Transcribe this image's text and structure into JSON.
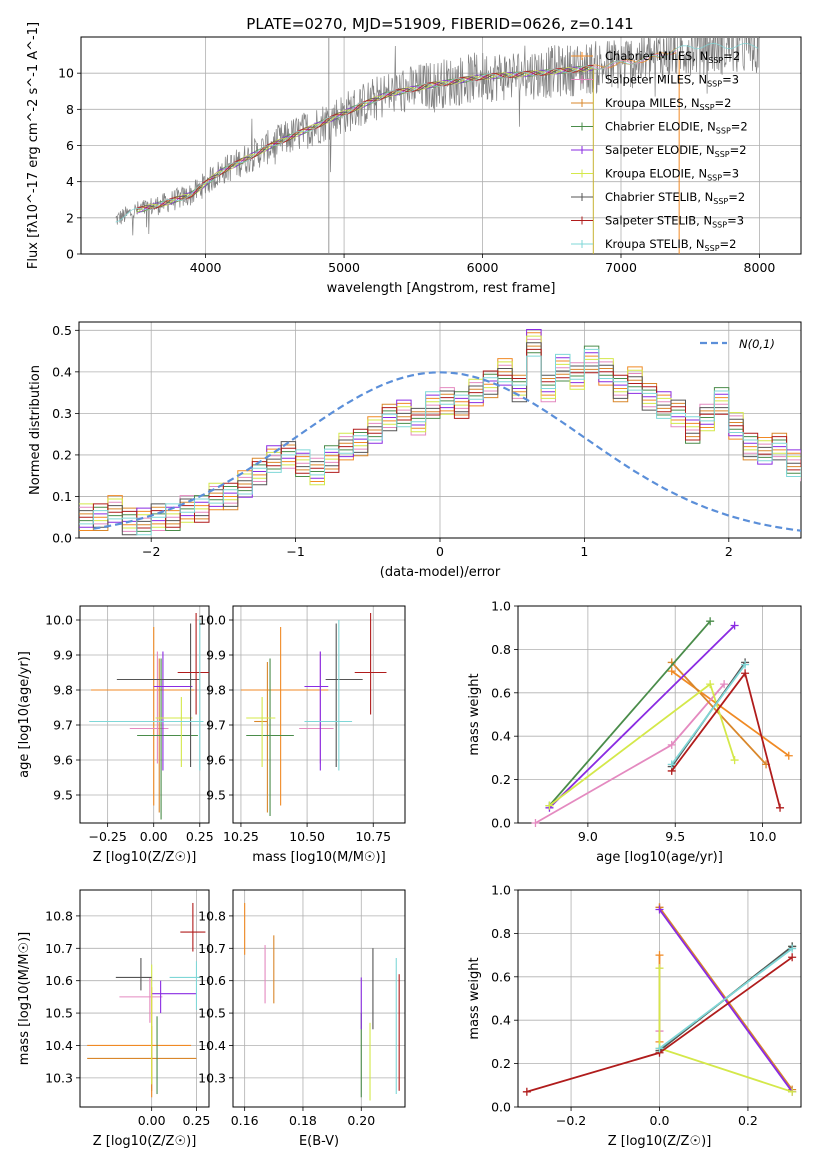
{
  "title": "PLATE=0270, MJD=51909, FIBERID=0626, z=0.141",
  "colors": {
    "axes": "#000000",
    "grid": "#b0b0b0",
    "gray_spectrum": "#808080",
    "normal": "#5b8fd9",
    "models": [
      "#f08a24",
      "#e48ac0",
      "#d9872b",
      "#4a8c4a",
      "#8a2be2",
      "#d4e84a",
      "#555555",
      "#b01c1c",
      "#7fd7d7"
    ]
  },
  "models": [
    "Chabrier MILES, N_SSP=2",
    "Salpeter MILES, N_SSP=3",
    "Kroupa MILES, N_SSP=2",
    "Chabrier ELODIE, N_SSP=2",
    "Salpeter ELODIE, N_SSP=2",
    "Kroupa ELODIE, N_SSP=3",
    "Chabrier STELIB, N_SSP=2",
    "Salpeter STELIB, N_SSP=3",
    "Kroupa STELIB, N_SSP=2"
  ],
  "chart_data": [
    {
      "id": "spectrum",
      "type": "line",
      "xlabel": "wavelength [Angstrom, rest frame]",
      "ylabel": "Flux [fλ10^-17 erg cm^-2 s^-1 A^-1]",
      "xlim": [
        3100,
        8300
      ],
      "ylim": [
        0,
        12
      ],
      "xticks": [
        4000,
        5000,
        6000,
        7000,
        8000
      ],
      "yticks": [
        0,
        2,
        4,
        6,
        8,
        10
      ],
      "grid": true,
      "legend": "right, inside",
      "continuum": {
        "x": [
          3350,
          3500,
          3700,
          3900,
          4100,
          4300,
          4500,
          4800,
          5000,
          5300,
          5600,
          6000,
          6400,
          6800,
          7200,
          7500
        ],
        "y": [
          1.9,
          2.4,
          2.8,
          3.3,
          4.5,
          5.3,
          6.1,
          7.1,
          7.8,
          8.8,
          9.3,
          9.8,
          10.0,
          10.3,
          10.8,
          11.5
        ]
      },
      "data_range": [
        3350,
        8000
      ]
    },
    {
      "id": "residuals",
      "type": "line",
      "xlabel": "(data-model)/error",
      "ylabel": "Normed distribution",
      "xlim": [
        -2.5,
        2.5
      ],
      "ylim": [
        0,
        0.52
      ],
      "xticks": [
        -2,
        -1,
        0,
        1,
        2
      ],
      "yticks": [
        0.0,
        0.1,
        0.2,
        0.3,
        0.4,
        0.5
      ],
      "grid": true,
      "legend": "top-right",
      "normal_label": "N(0,1)",
      "hist_edges_start": -2.5,
      "hist_bin_width": 0.1,
      "hist_values": [
        0.05,
        0.05,
        0.07,
        0.04,
        0.04,
        0.05,
        0.05,
        0.07,
        0.07,
        0.1,
        0.1,
        0.13,
        0.16,
        0.19,
        0.2,
        0.18,
        0.16,
        0.19,
        0.22,
        0.23,
        0.26,
        0.29,
        0.3,
        0.28,
        0.32,
        0.33,
        0.32,
        0.35,
        0.37,
        0.4,
        0.36,
        0.47,
        0.36,
        0.41,
        0.39,
        0.43,
        0.4,
        0.36,
        0.38,
        0.34,
        0.32,
        0.3,
        0.26,
        0.29,
        0.33,
        0.27,
        0.22,
        0.21,
        0.22,
        0.18,
        0.17,
        0.17,
        0.15,
        0.13,
        0.14,
        0.12,
        0.1,
        0.11,
        0.11,
        0.09,
        0.08,
        0.09,
        0.08,
        0.06,
        0.07,
        0.06,
        0.05,
        0.04,
        0.04,
        0.05,
        0.04,
        0.03,
        0.03,
        0.02,
        0.03
      ]
    },
    {
      "id": "age-vs-Z",
      "type": "scatter",
      "xlabel": "Z [log10(Z/Z☉)]",
      "ylabel": "age  [log10(age/yr)]",
      "xlim": [
        -0.4,
        0.3
      ],
      "ylim": [
        9.42,
        10.04
      ],
      "xticks": [
        -0.25,
        0.0,
        0.25
      ],
      "yticks": [
        9.5,
        9.6,
        9.7,
        9.8,
        9.9,
        10.0
      ],
      "grid": true,
      "errorbars": [
        {
          "x": 0.0,
          "xerr": [
            0.34,
            0.22
          ],
          "y": 9.8,
          "yerr": [
            0.33,
            0.18
          ]
        },
        {
          "x": 0.02,
          "xerr": [
            0.15,
            0.06
          ],
          "y": 9.69,
          "yerr": [
            0.1,
            0.22
          ]
        },
        {
          "x": 0.03,
          "xerr": [
            0.0,
            0.0
          ],
          "y": 9.71,
          "yerr": [
            0.26,
            0.18
          ]
        },
        {
          "x": 0.04,
          "xerr": [
            0.13,
            0.2
          ],
          "y": 9.67,
          "yerr": [
            0.24,
            0.22
          ]
        },
        {
          "x": 0.05,
          "xerr": [
            0.05,
            0.16
          ],
          "y": 9.81,
          "yerr": [
            0.24,
            0.1
          ]
        },
        {
          "x": 0.15,
          "xerr": [
            0.14,
            0.06
          ],
          "y": 9.72,
          "yerr": [
            0.14,
            0.06
          ]
        },
        {
          "x": 0.2,
          "xerr": [
            0.4,
            0.05
          ],
          "y": 9.83,
          "yerr": [
            0.25,
            0.16
          ]
        },
        {
          "x": 0.23,
          "xerr": [
            0.1,
            0.08
          ],
          "y": 9.85,
          "yerr": [
            0.12,
            0.17
          ]
        },
        {
          "x": 0.25,
          "xerr": [
            0.6,
            0.02
          ],
          "y": 9.71,
          "yerr": [
            0.14,
            0.29
          ]
        }
      ]
    },
    {
      "id": "age-vs-mass",
      "type": "scatter",
      "xlabel": "mass [log10(M/M☉)]",
      "ylabel": "",
      "xlim": [
        10.22,
        10.87
      ],
      "ylim": [
        9.42,
        10.04
      ],
      "xticks": [
        10.25,
        10.5,
        10.75
      ],
      "yticks": [
        9.5,
        9.6,
        9.7,
        9.8,
        9.9,
        10.0
      ],
      "grid": true,
      "errorbars": [
        {
          "x": 10.4,
          "xerr": [
            0.15,
            0.18
          ],
          "y": 9.8,
          "yerr": [
            0.33,
            0.18
          ]
        },
        {
          "x": 10.55,
          "xerr": [
            0.08,
            0.05
          ],
          "y": 9.69,
          "yerr": [
            0.1,
            0.22
          ]
        },
        {
          "x": 10.35,
          "xerr": [
            0.05,
            0.0
          ],
          "y": 9.71,
          "yerr": [
            0.26,
            0.17
          ]
        },
        {
          "x": 10.36,
          "xerr": [
            0.09,
            0.09
          ],
          "y": 9.67,
          "yerr": [
            0.23,
            0.22
          ]
        },
        {
          "x": 10.55,
          "xerr": [
            0.06,
            0.03
          ],
          "y": 9.81,
          "yerr": [
            0.24,
            0.1
          ]
        },
        {
          "x": 10.33,
          "xerr": [
            0.06,
            0.05
          ],
          "y": 9.72,
          "yerr": [
            0.14,
            0.06
          ]
        },
        {
          "x": 10.61,
          "xerr": [
            0.04,
            0.1
          ],
          "y": 9.83,
          "yerr": [
            0.25,
            0.16
          ]
        },
        {
          "x": 10.74,
          "xerr": [
            0.06,
            0.06
          ],
          "y": 9.85,
          "yerr": [
            0.12,
            0.17
          ]
        },
        {
          "x": 10.62,
          "xerr": [
            0.13,
            0.05
          ],
          "y": 9.71,
          "yerr": [
            0.14,
            0.29
          ]
        }
      ]
    },
    {
      "id": "mass-weight-vs-age",
      "type": "line",
      "xlabel": "age  [log10(age/yr)]",
      "ylabel": "mass weight",
      "xlim": [
        8.6,
        10.22
      ],
      "ylim": [
        0,
        1
      ],
      "xticks": [
        9.0,
        9.5,
        10.0
      ],
      "yticks": [
        0.0,
        0.2,
        0.4,
        0.6,
        0.8,
        1.0
      ],
      "grid": true,
      "lines": [
        {
          "x": [
            9.48,
            10.15
          ],
          "y": [
            0.7,
            0.31
          ]
        },
        {
          "x": [
            8.7,
            9.48,
            9.78
          ],
          "y": [
            0.0,
            0.36,
            0.64
          ]
        },
        {
          "x": [
            9.48,
            10.02
          ],
          "y": [
            0.74,
            0.27
          ]
        },
        {
          "x": [
            8.78,
            9.7
          ],
          "y": [
            0.08,
            0.93
          ]
        },
        {
          "x": [
            8.78,
            9.84
          ],
          "y": [
            0.07,
            0.91
          ]
        },
        {
          "x": [
            8.78,
            9.7,
            9.84
          ],
          "y": [
            0.08,
            0.64,
            0.29
          ]
        },
        {
          "x": [
            9.48,
            9.9
          ],
          "y": [
            0.26,
            0.74
          ]
        },
        {
          "x": [
            9.48,
            9.9,
            10.1
          ],
          "y": [
            0.24,
            0.69,
            0.07
          ]
        },
        {
          "x": [
            9.48,
            9.9
          ],
          "y": [
            0.27,
            0.73
          ]
        }
      ]
    },
    {
      "id": "mass-vs-Z",
      "type": "scatter",
      "xlabel": "Z [log10(Z/Z☉)]",
      "ylabel": "mass [log10(M/M☉)]",
      "xlim": [
        -0.4,
        0.32
      ],
      "ylim": [
        10.21,
        10.88
      ],
      "xticks": [
        0.0,
        0.25
      ],
      "yticks": [
        10.3,
        10.4,
        10.5,
        10.6,
        10.7,
        10.8
      ],
      "grid": true,
      "errorbars": [
        {
          "x": 0.0,
          "xerr": [
            0.36,
            0.22
          ],
          "y": 10.4,
          "yerr": [
            0.16,
            0.18
          ]
        },
        {
          "x": -0.01,
          "xerr": [
            0.17,
            0.07
          ],
          "y": 10.55,
          "yerr": [
            0.08,
            0.06
          ]
        },
        {
          "x": 0.0,
          "xerr": [
            0.36,
            0.25
          ],
          "y": 10.36,
          "yerr": [
            0.1,
            0.1
          ]
        },
        {
          "x": 0.03,
          "xerr": [
            0.0,
            0.0
          ],
          "y": 10.37,
          "yerr": [
            0.12,
            0.12
          ]
        },
        {
          "x": 0.05,
          "xerr": [
            0.05,
            0.2
          ],
          "y": 10.56,
          "yerr": [
            0.06,
            0.04
          ]
        },
        {
          "x": 0.0,
          "xerr": [
            0.0,
            0.0
          ],
          "y": 10.4,
          "yerr": [
            0.12,
            0.25
          ]
        },
        {
          "x": -0.06,
          "xerr": [
            0.14,
            0.06
          ],
          "y": 10.61,
          "yerr": [
            0.04,
            0.06
          ]
        },
        {
          "x": 0.23,
          "xerr": [
            0.07,
            0.07
          ],
          "y": 10.75,
          "yerr": [
            0.06,
            0.09
          ]
        },
        {
          "x": 0.25,
          "xerr": [
            0.15,
            0.02
          ],
          "y": 10.61,
          "yerr": [
            0.1,
            0.05
          ]
        }
      ]
    },
    {
      "id": "mass-vs-EBV",
      "type": "scatter",
      "xlabel": "E(B-V)",
      "ylabel": "",
      "xlim": [
        0.156,
        0.215
      ],
      "ylim": [
        10.21,
        10.88
      ],
      "xticks": [
        0.16,
        0.18,
        0.2
      ],
      "yticks": [
        10.3,
        10.4,
        10.5,
        10.6,
        10.7,
        10.8
      ],
      "grid": true,
      "errorbars": [
        {
          "x": 0.16,
          "xerr": [
            0.0,
            0.0
          ],
          "y": 10.76,
          "yerr": [
            0.08,
            0.08
          ]
        },
        {
          "x": 0.167,
          "xerr": [
            0.0,
            0.0
          ],
          "y": 10.62,
          "yerr": [
            0.09,
            0.09
          ]
        },
        {
          "x": 0.17,
          "xerr": [
            0.0,
            0.0
          ],
          "y": 10.63,
          "yerr": [
            0.1,
            0.11
          ]
        },
        {
          "x": 0.2,
          "xerr": [
            0.0,
            0.0
          ],
          "y": 10.37,
          "yerr": [
            0.13,
            0.13
          ]
        },
        {
          "x": 0.2,
          "xerr": [
            0.0,
            0.0
          ],
          "y": 10.53,
          "yerr": [
            0.08,
            0.08
          ]
        },
        {
          "x": 0.203,
          "xerr": [
            0.0,
            0.0
          ],
          "y": 10.35,
          "yerr": [
            0.12,
            0.12
          ]
        },
        {
          "x": 0.204,
          "xerr": [
            0.0,
            0.0
          ],
          "y": 10.57,
          "yerr": [
            0.12,
            0.13
          ]
        },
        {
          "x": 0.213,
          "xerr": [
            0.0,
            0.0
          ],
          "y": 10.44,
          "yerr": [
            0.18,
            0.18
          ]
        },
        {
          "x": 0.212,
          "xerr": [
            0.0,
            0.0
          ],
          "y": 10.46,
          "yerr": [
            0.21,
            0.21
          ]
        }
      ]
    },
    {
      "id": "mass-weight-vs-Z",
      "type": "line",
      "xlabel": "Z [log10(Z/Z☉)]",
      "ylabel": "mass weight",
      "xlim": [
        -0.32,
        0.32
      ],
      "ylim": [
        0,
        1
      ],
      "xticks": [
        -0.2,
        0.0,
        0.2
      ],
      "yticks": [
        0.0,
        0.2,
        0.4,
        0.6,
        0.8,
        1.0
      ],
      "grid": true,
      "lines": [
        {
          "x": [
            0.0,
            0.0
          ],
          "y": [
            0.7,
            0.3
          ]
        },
        {
          "x": [
            0.0,
            0.0
          ],
          "y": [
            0.64,
            0.35
          ]
        },
        {
          "x": [
            0.0,
            0.0,
            0.3
          ],
          "y": [
            0.92,
            0.92,
            0.08
          ]
        },
        {
          "x": [
            0.0,
            0.3
          ],
          "y": [
            0.26,
            0.74
          ]
        },
        {
          "x": [
            0.0,
            0.3
          ],
          "y": [
            0.91,
            0.07
          ]
        },
        {
          "x": [
            0.0,
            0.0,
            0.3
          ],
          "y": [
            0.64,
            0.27,
            0.07
          ]
        },
        {
          "x": [
            0.0,
            0.3
          ],
          "y": [
            0.26,
            0.74
          ]
        },
        {
          "x": [
            -0.3,
            0.0,
            0.3
          ],
          "y": [
            0.07,
            0.25,
            0.69
          ]
        },
        {
          "x": [
            0.0,
            0.3
          ],
          "y": [
            0.27,
            0.73
          ]
        }
      ]
    }
  ]
}
